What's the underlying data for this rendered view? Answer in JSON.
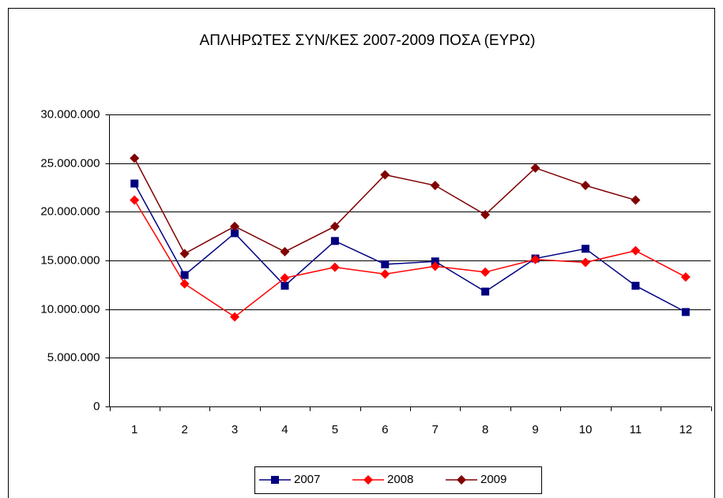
{
  "chart_data": {
    "type": "line",
    "title": "ΑΠΛΗΡΩΤΕΣ ΣΥΝ/ΚΕΣ 2007-2009 ΠΟΣΑ (ΕΥΡΩ)",
    "categories": [
      "1",
      "2",
      "3",
      "4",
      "5",
      "6",
      "7",
      "8",
      "9",
      "10",
      "11",
      "12"
    ],
    "series": [
      {
        "name": "2007",
        "color": "#000080",
        "marker": "square",
        "values": [
          22900000,
          13500000,
          17800000,
          12400000,
          17000000,
          14600000,
          14900000,
          11800000,
          15200000,
          16200000,
          12400000,
          9700000
        ]
      },
      {
        "name": "2008",
        "color": "#ff0000",
        "marker": "diamond",
        "values": [
          21200000,
          12600000,
          9200000,
          13200000,
          14300000,
          13600000,
          14400000,
          13800000,
          15100000,
          14800000,
          16000000,
          13300000
        ]
      },
      {
        "name": "2009",
        "color": "#800000",
        "marker": "diamond",
        "values": [
          25500000,
          15700000,
          18500000,
          15900000,
          18500000,
          23800000,
          22700000,
          19700000,
          24500000,
          22700000,
          21200000,
          null
        ]
      }
    ],
    "ylim": [
      0,
      30000000
    ],
    "yticks": [
      0,
      {
        "value": 5000000,
        "label": "5.000.000"
      },
      {
        "value": 10000000,
        "label": "10.000.000"
      },
      {
        "value": 15000000,
        "label": "15.000.000"
      },
      {
        "value": 20000000,
        "label": "20.000.000"
      },
      {
        "value": 25000000,
        "label": "25.000.000"
      },
      {
        "value": 30000000,
        "label": "30.000.000"
      }
    ],
    "grid": true,
    "legend": "bottom"
  }
}
